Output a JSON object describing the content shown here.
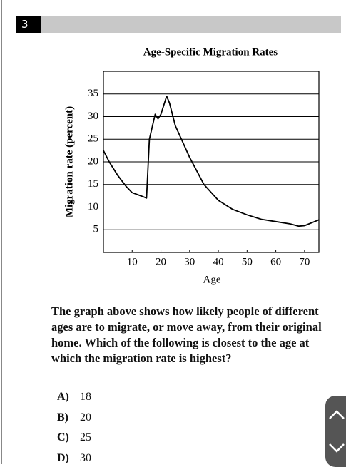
{
  "question_number": "3",
  "chart_data": {
    "type": "line",
    "title": "Age-Specific Migration Rates",
    "x_label": "Age",
    "y_label": "Migration rate (percent)",
    "x": [
      0,
      2,
      5,
      8,
      10,
      13,
      15,
      16,
      18,
      19,
      20,
      22,
      23,
      25,
      30,
      35,
      40,
      45,
      50,
      55,
      60,
      65,
      68,
      70,
      75
    ],
    "series": [
      {
        "name": "Migration rate",
        "color": "#000000",
        "values": [
          22.5,
          20,
          17,
          14.5,
          13.2,
          12.5,
          12,
          25,
          30.5,
          29.5,
          30.5,
          34.5,
          33,
          28,
          21,
          15,
          11.5,
          9.5,
          8.3,
          7.3,
          6.8,
          6.3,
          5.8,
          5.9,
          7.2
        ]
      }
    ],
    "xlim": [
      0,
      75
    ],
    "xticks": [
      10,
      20,
      30,
      40,
      50,
      60,
      70
    ],
    "ylim": [
      0,
      40
    ],
    "yticks": [
      5,
      10,
      15,
      20,
      25,
      30,
      35
    ],
    "grid": true
  },
  "question": "The graph above shows how likely people of different ages are to migrate, or move away, from their original home. Which of the following is closest to the age at which the migration rate is highest?",
  "choices": [
    {
      "letter": "A)",
      "text": "18"
    },
    {
      "letter": "B)",
      "text": "20"
    },
    {
      "letter": "C)",
      "text": "25"
    },
    {
      "letter": "D)",
      "text": "30"
    }
  ]
}
